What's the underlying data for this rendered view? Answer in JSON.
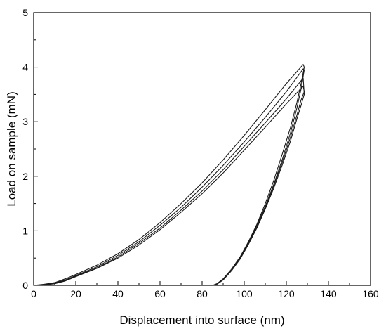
{
  "chart_data": {
    "type": "line",
    "title": "",
    "xlabel": "Displacement into surface (nm)",
    "ylabel": "Load on sample (mN)",
    "xlim": [
      0,
      160
    ],
    "ylim": [
      0,
      5
    ],
    "xticks": [
      0,
      20,
      40,
      60,
      80,
      100,
      120,
      140,
      160
    ],
    "yticks": [
      0,
      1,
      2,
      3,
      4,
      5
    ],
    "grid": false,
    "legend": "none",
    "series_color": "#1a1a1a",
    "series": [
      {
        "x": [
          0,
          5,
          10,
          15,
          20,
          30,
          40,
          50,
          60,
          70,
          80,
          90,
          100,
          110,
          120,
          128,
          128.5,
          127,
          125,
          122,
          118,
          114,
          110,
          106,
          102,
          98,
          94,
          90,
          87,
          85
        ],
        "y": [
          0,
          0.01,
          0.04,
          0.1,
          0.18,
          0.34,
          0.55,
          0.8,
          1.1,
          1.43,
          1.8,
          2.2,
          2.63,
          3.08,
          3.55,
          3.97,
          3.95,
          3.6,
          3.25,
          2.8,
          2.3,
          1.85,
          1.45,
          1.1,
          0.78,
          0.5,
          0.28,
          0.1,
          0.02,
          0
        ]
      },
      {
        "x": [
          0,
          5,
          10,
          15,
          20,
          30,
          40,
          50,
          60,
          70,
          80,
          90,
          100,
          110,
          120,
          128,
          128.5,
          127,
          125,
          122,
          118,
          114,
          110,
          106,
          102,
          98,
          94,
          90,
          87,
          85
        ],
        "y": [
          0,
          0.02,
          0.05,
          0.12,
          0.2,
          0.37,
          0.58,
          0.84,
          1.15,
          1.5,
          1.88,
          2.3,
          2.75,
          3.22,
          3.7,
          4.05,
          4.0,
          3.7,
          3.35,
          2.9,
          2.4,
          1.92,
          1.5,
          1.12,
          0.8,
          0.52,
          0.3,
          0.12,
          0.03,
          0
        ]
      },
      {
        "x": [
          0,
          5,
          10,
          15,
          20,
          30,
          40,
          50,
          60,
          70,
          80,
          90,
          100,
          110,
          120,
          128,
          128.5,
          127,
          125,
          122,
          118,
          114,
          110,
          106,
          102,
          98,
          94,
          90,
          87,
          85
        ],
        "y": [
          0,
          0.01,
          0.03,
          0.09,
          0.17,
          0.32,
          0.52,
          0.77,
          1.05,
          1.38,
          1.73,
          2.12,
          2.55,
          2.98,
          3.42,
          3.8,
          3.5,
          3.3,
          3.05,
          2.65,
          2.2,
          1.78,
          1.4,
          1.05,
          0.75,
          0.48,
          0.27,
          0.1,
          0.02,
          0
        ]
      },
      {
        "x": [
          0,
          5,
          10,
          15,
          20,
          30,
          40,
          50,
          60,
          70,
          80,
          90,
          100,
          110,
          120,
          128,
          128.5,
          127,
          125,
          122,
          118,
          114,
          110,
          106,
          102,
          98,
          94,
          90,
          87,
          85
        ],
        "y": [
          0,
          0.01,
          0.03,
          0.08,
          0.16,
          0.31,
          0.5,
          0.74,
          1.02,
          1.34,
          1.68,
          2.06,
          2.48,
          2.9,
          3.33,
          3.65,
          3.55,
          3.4,
          3.12,
          2.72,
          2.25,
          1.82,
          1.42,
          1.07,
          0.76,
          0.49,
          0.27,
          0.1,
          0.02,
          0
        ]
      }
    ]
  }
}
